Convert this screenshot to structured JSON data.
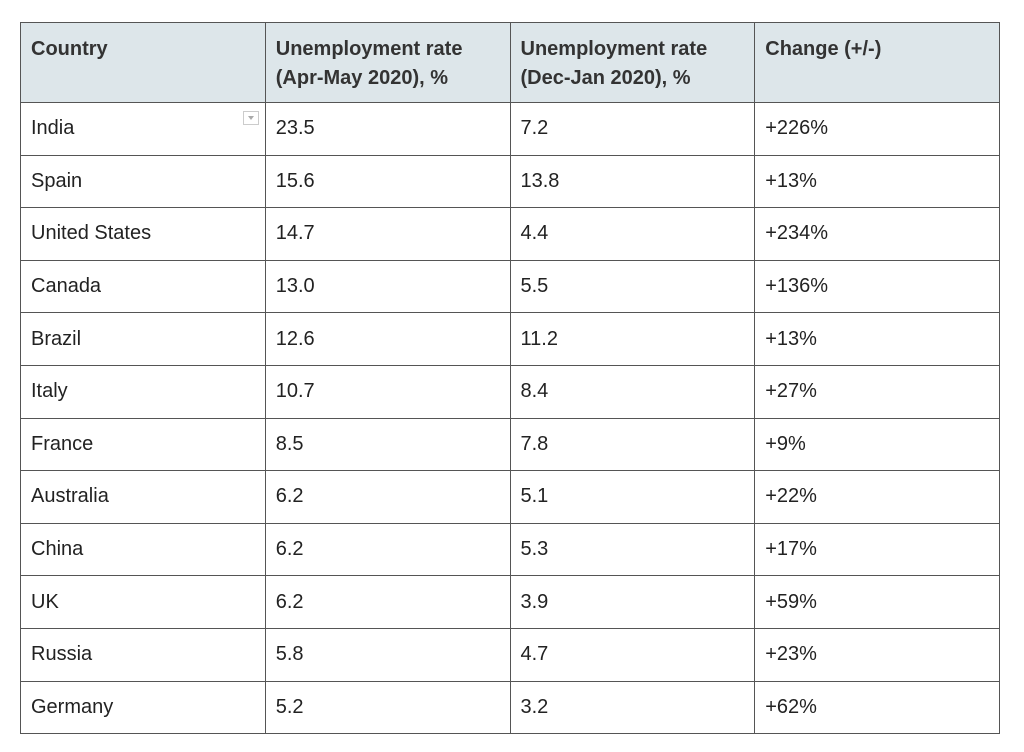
{
  "table": {
    "header": [
      "Country",
      "Unemployment rate (Apr-May 2020), %",
      "Unemployment rate (Dec-Jan 2020), %",
      "Change (+/-)"
    ],
    "rows": [
      [
        "India",
        "23.5",
        "7.2",
        "+226%"
      ],
      [
        "Spain",
        "15.6",
        "13.8",
        "+13%"
      ],
      [
        "United States",
        "14.7",
        "4.4",
        "+234%"
      ],
      [
        "Canada",
        "13.0",
        "5.5",
        "+136%"
      ],
      [
        "Brazil",
        "12.6",
        "11.2",
        "+13%"
      ],
      [
        "Italy",
        "10.7",
        "8.4",
        "+27%"
      ],
      [
        "France",
        "8.5",
        "7.8",
        "+9%"
      ],
      [
        "Australia",
        "6.2",
        "5.1",
        "+22%"
      ],
      [
        "China",
        "6.2",
        "5.3",
        "+17%"
      ],
      [
        "UK",
        "6.2",
        "3.9",
        "+59%"
      ],
      [
        "Russia",
        "5.8",
        "4.7",
        "+23%"
      ],
      [
        "Germany",
        "5.2",
        "3.2",
        "+62%"
      ]
    ]
  }
}
